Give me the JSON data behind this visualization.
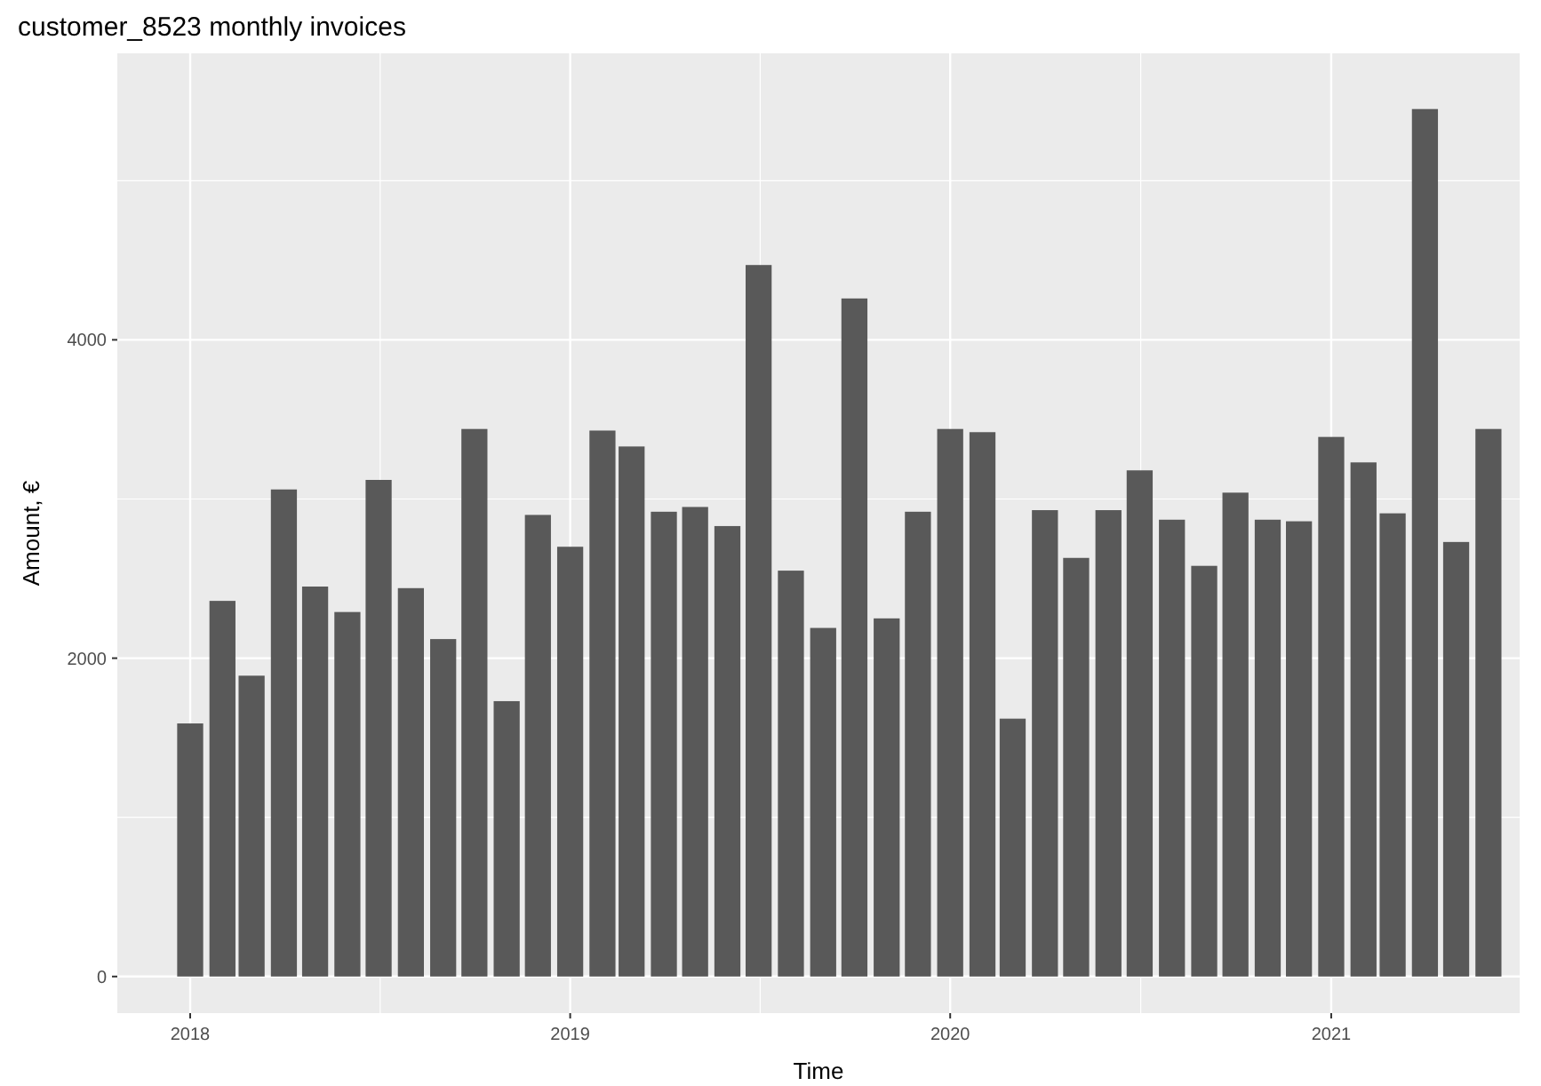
{
  "chart_data": {
    "type": "bar",
    "title": "customer_8523 monthly invoices",
    "xlabel": "Time",
    "ylabel": "Amount, €",
    "x": [
      "2018-01",
      "2018-02",
      "2018-03",
      "2018-04",
      "2018-05",
      "2018-06",
      "2018-07",
      "2018-08",
      "2018-09",
      "2018-10",
      "2018-11",
      "2018-12",
      "2019-01",
      "2019-02",
      "2019-03",
      "2019-04",
      "2019-05",
      "2019-06",
      "2019-07",
      "2019-08",
      "2019-09",
      "2019-10",
      "2019-11",
      "2019-12",
      "2020-01",
      "2020-02",
      "2020-03",
      "2020-04",
      "2020-05",
      "2020-06",
      "2020-07",
      "2020-08",
      "2020-09",
      "2020-10",
      "2020-11",
      "2020-12",
      "2021-01",
      "2021-02",
      "2021-03",
      "2021-04",
      "2021-05",
      "2021-06"
    ],
    "values": [
      1590,
      2360,
      1890,
      3060,
      2450,
      2290,
      3120,
      2440,
      2120,
      3440,
      1730,
      2900,
      2700,
      3430,
      3330,
      2920,
      2950,
      2830,
      4470,
      2550,
      2190,
      4260,
      2250,
      2920,
      3440,
      3420,
      1620,
      2930,
      2630,
      2930,
      3180,
      2870,
      2580,
      3040,
      2870,
      2860,
      3390,
      3230,
      2910,
      5450,
      2730,
      3440
    ],
    "color": "#595959",
    "xlim": [
      "2017-10-23",
      "2021-07-01"
    ],
    "xticks": [
      {
        "value": "2018-01-01",
        "label": "2018"
      },
      {
        "value": "2019-01-01",
        "label": "2019"
      },
      {
        "value": "2020-01-01",
        "label": "2020"
      },
      {
        "value": "2021-01-01",
        "label": "2021"
      }
    ],
    "ylim": [
      -230,
      5800
    ],
    "yticks": [
      0,
      2000,
      4000
    ],
    "grid": true
  }
}
